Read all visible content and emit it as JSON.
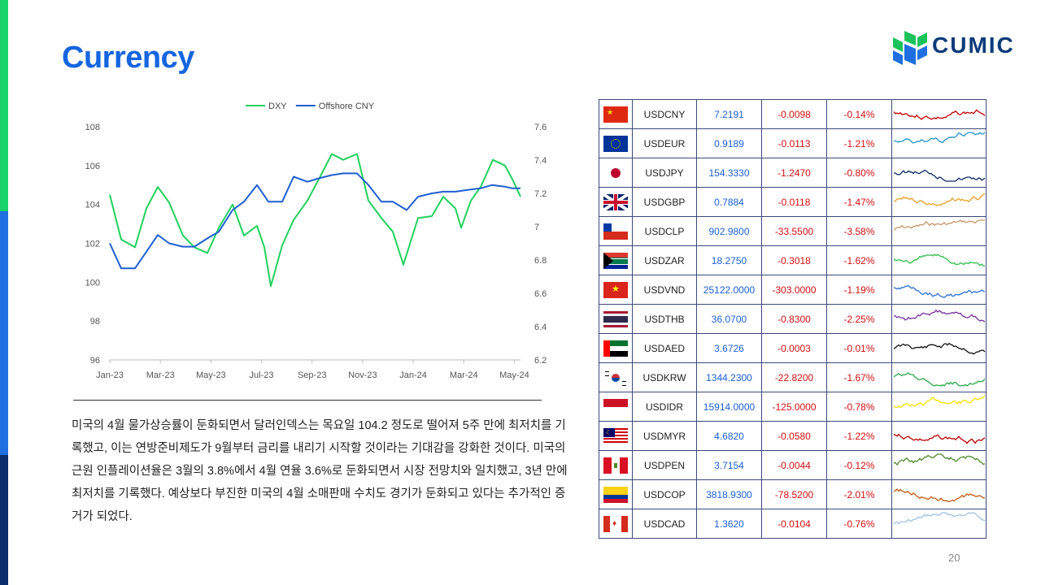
{
  "slide": {
    "title": "Currency",
    "page_number": "20",
    "logo_text": "CUMIC"
  },
  "paragraph": "미국의 4월 물가상승률이 둔화되면서 달러인덱스는 목요일 104.2 정도로 떨어져 5주 만에 최저치를 기록했고, 이는 연방준비제도가 9월부터 금리를 내리기 시작할 것이라는 기대감을 강화한 것이다. 미국의 근원 인플레이션율은 3월의 3.8%에서 4월 연율 3.6%로 둔화되면서 시장 전망치와 일치했고, 3년 만에 최저치를 기록했다. 예상보다 부진한 미국의 4월 소매판매 수치도 경기가 둔화되고 있다는 추가적인 증거가 되었다.",
  "chart_data": {
    "type": "line",
    "legend_position": "top",
    "x_tick_labels": [
      "Jan-23",
      "Mar-23",
      "May-23",
      "Jul-23",
      "Sep-23",
      "Nov-23",
      "Jan-24",
      "Mar-24",
      "May-24"
    ],
    "y_left": {
      "ticks": [
        "108",
        "106",
        "104",
        "102",
        "100",
        "98",
        "96"
      ],
      "ylim": [
        96,
        108
      ]
    },
    "y_right": {
      "ticks": [
        "7.6",
        "7.4",
        "7.2",
        "7",
        "6.8",
        "6.6",
        "6.4",
        "6.2"
      ],
      "ylim": [
        6.2,
        7.6
      ]
    },
    "x_range": [
      "2023-01-01",
      "2024-05-20"
    ],
    "series": [
      {
        "name": "DXY",
        "axis": "left",
        "color": "#21d15d",
        "points": [
          [
            "2023-01-01",
            104.5
          ],
          [
            "2023-01-15",
            102.2
          ],
          [
            "2023-02-01",
            101.8
          ],
          [
            "2023-02-15",
            103.8
          ],
          [
            "2023-03-01",
            104.9
          ],
          [
            "2023-03-15",
            104.1
          ],
          [
            "2023-04-01",
            102.4
          ],
          [
            "2023-04-15",
            101.8
          ],
          [
            "2023-05-01",
            101.5
          ],
          [
            "2023-05-15",
            102.8
          ],
          [
            "2023-06-01",
            104.0
          ],
          [
            "2023-06-15",
            102.4
          ],
          [
            "2023-07-01",
            102.9
          ],
          [
            "2023-07-10",
            101.8
          ],
          [
            "2023-07-18",
            99.8
          ],
          [
            "2023-08-01",
            101.9
          ],
          [
            "2023-08-15",
            103.2
          ],
          [
            "2023-09-01",
            104.2
          ],
          [
            "2023-09-15",
            105.3
          ],
          [
            "2023-10-01",
            106.6
          ],
          [
            "2023-10-15",
            106.3
          ],
          [
            "2023-11-01",
            106.6
          ],
          [
            "2023-11-15",
            104.2
          ],
          [
            "2023-12-01",
            103.3
          ],
          [
            "2023-12-15",
            102.6
          ],
          [
            "2023-12-28",
            100.9
          ],
          [
            "2024-01-15",
            103.3
          ],
          [
            "2024-02-01",
            103.4
          ],
          [
            "2024-02-15",
            104.4
          ],
          [
            "2024-03-01",
            103.8
          ],
          [
            "2024-03-08",
            102.8
          ],
          [
            "2024-03-20",
            104.2
          ],
          [
            "2024-04-01",
            104.9
          ],
          [
            "2024-04-16",
            106.3
          ],
          [
            "2024-05-01",
            106.0
          ],
          [
            "2024-05-10",
            105.3
          ],
          [
            "2024-05-20",
            104.4
          ]
        ]
      },
      {
        "name": "Offshore CNY",
        "axis": "right",
        "color": "#1f5fd0",
        "points": [
          [
            "2023-01-01",
            6.9
          ],
          [
            "2023-01-15",
            6.75
          ],
          [
            "2023-02-01",
            6.75
          ],
          [
            "2023-02-15",
            6.85
          ],
          [
            "2023-03-01",
            6.95
          ],
          [
            "2023-03-15",
            6.9
          ],
          [
            "2023-04-01",
            6.88
          ],
          [
            "2023-04-15",
            6.88
          ],
          [
            "2023-05-01",
            6.93
          ],
          [
            "2023-05-15",
            6.97
          ],
          [
            "2023-06-01",
            7.1
          ],
          [
            "2023-06-15",
            7.15
          ],
          [
            "2023-07-01",
            7.25
          ],
          [
            "2023-07-15",
            7.15
          ],
          [
            "2023-08-01",
            7.15
          ],
          [
            "2023-08-15",
            7.3
          ],
          [
            "2023-09-01",
            7.27
          ],
          [
            "2023-09-15",
            7.29
          ],
          [
            "2023-10-01",
            7.31
          ],
          [
            "2023-10-15",
            7.32
          ],
          [
            "2023-11-01",
            7.32
          ],
          [
            "2023-11-15",
            7.25
          ],
          [
            "2023-12-01",
            7.15
          ],
          [
            "2023-12-15",
            7.15
          ],
          [
            "2024-01-01",
            7.1
          ],
          [
            "2024-01-15",
            7.18
          ],
          [
            "2024-02-01",
            7.2
          ],
          [
            "2024-02-15",
            7.21
          ],
          [
            "2024-03-01",
            7.21
          ],
          [
            "2024-03-15",
            7.22
          ],
          [
            "2024-04-01",
            7.23
          ],
          [
            "2024-04-15",
            7.25
          ],
          [
            "2024-05-01",
            7.24
          ],
          [
            "2024-05-10",
            7.23
          ],
          [
            "2024-05-20",
            7.23
          ]
        ]
      }
    ]
  },
  "fx_table": [
    {
      "flag": "china-flag",
      "pair": "USDCNY",
      "price": "7.2191",
      "change": "-0.0098",
      "pct": "-0.14%",
      "spark_color": "#c00000"
    },
    {
      "flag": "eu-flag",
      "pair": "USDEUR",
      "price": "0.9189",
      "change": "-0.0113",
      "pct": "-1.21%",
      "spark_color": "#2196c9"
    },
    {
      "flag": "japan-flag",
      "pair": "USDJPY",
      "price": "154.3330",
      "change": "-1.2470",
      "pct": "-0.80%",
      "spark_color": "#0a2a66"
    },
    {
      "flag": "uk-flag",
      "pair": "USDGBP",
      "price": "0.7884",
      "change": "-0.0118",
      "pct": "-1.47%",
      "spark_color": "#e8a02a"
    },
    {
      "flag": "chile-flag",
      "pair": "USDCLP",
      "price": "902.9800",
      "change": "-33.5500",
      "pct": "-3.58%",
      "spark_color": "#c9956a"
    },
    {
      "flag": "south-africa-flag",
      "pair": "USDZAR",
      "price": "18.2750",
      "change": "-0.3018",
      "pct": "-1.62%",
      "spark_color": "#2fbf4a"
    },
    {
      "flag": "vietnam-flag",
      "pair": "USDVND",
      "price": "25122.0000",
      "change": "-303.0000",
      "pct": "-1.19%",
      "spark_color": "#2a6fd6"
    },
    {
      "flag": "thailand-flag",
      "pair": "USDTHB",
      "price": "36.0700",
      "change": "-0.8300",
      "pct": "-2.25%",
      "spark_color": "#7a2ea0"
    },
    {
      "flag": "uae-flag",
      "pair": "USDAED",
      "price": "3.6726",
      "change": "-0.0003",
      "pct": "-0.01%",
      "spark_color": "#101010"
    },
    {
      "flag": "korea-flag",
      "pair": "USDKRW",
      "price": "1344.2300",
      "change": "-22.8200",
      "pct": "-1.67%",
      "spark_color": "#2aa84a"
    },
    {
      "flag": "indonesia-flag",
      "pair": "USDIDR",
      "price": "15914.0000",
      "change": "-125.0000",
      "pct": "-0.78%",
      "spark_color": "#f2e000"
    },
    {
      "flag": "malaysia-flag",
      "pair": "USDMYR",
      "price": "4.6820",
      "change": "-0.0580",
      "pct": "-1.22%",
      "spark_color": "#b80000"
    },
    {
      "flag": "peru-flag",
      "pair": "USDPEN",
      "price": "3.7154",
      "change": "-0.0044",
      "pct": "-0.12%",
      "spark_color": "#4a8a2a"
    },
    {
      "flag": "colombia-flag",
      "pair": "USDCOP",
      "price": "3818.9300",
      "change": "-78.5200",
      "pct": "-2.01%",
      "spark_color": "#c05a10"
    },
    {
      "flag": "canada-flag",
      "pair": "USDCAD",
      "price": "1.3620",
      "change": "-0.0104",
      "pct": "-0.76%",
      "spark_color": "#9fc2e0"
    }
  ]
}
